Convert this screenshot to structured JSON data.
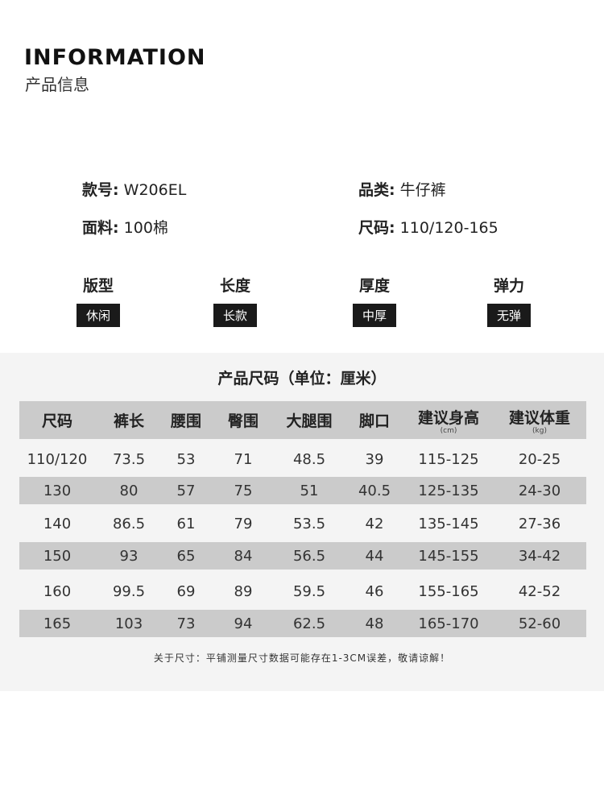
{
  "header": {
    "title_en": "INFORMATION",
    "title_cn": "产品信息"
  },
  "info": [
    {
      "label": "款号:",
      "value": "W206EL"
    },
    {
      "label": "品类:",
      "value": "牛仔裤"
    },
    {
      "label": "面料:",
      "value": "100棉"
    },
    {
      "label": "尺码:",
      "value": "110/120-165"
    }
  ],
  "attributes": [
    {
      "label": "版型",
      "value": "休闲"
    },
    {
      "label": "长度",
      "value": "长款"
    },
    {
      "label": "厚度",
      "value": "中厚"
    },
    {
      "label": "弹力",
      "value": "无弹"
    }
  ],
  "size_table": {
    "title": "产品尺码（单位：厘米）",
    "headers": [
      {
        "label": "尺码"
      },
      {
        "label": "裤长"
      },
      {
        "label": "腰围"
      },
      {
        "label": "臀围"
      },
      {
        "label": "大腿围"
      },
      {
        "label": "脚口"
      },
      {
        "label": "建议身高",
        "unit": "(cm)"
      },
      {
        "label": "建议体重",
        "unit": "(kg)"
      }
    ],
    "rows": [
      [
        "110/120",
        "73.5",
        "53",
        "71",
        "48.5",
        "39",
        "115-125",
        "20-25"
      ],
      [
        "130",
        "80",
        "57",
        "75",
        "51",
        "40.5",
        "125-135",
        "24-30"
      ],
      [
        "140",
        "86.5",
        "61",
        "79",
        "53.5",
        "42",
        "135-145",
        "27-36"
      ],
      [
        "150",
        "93",
        "65",
        "84",
        "56.5",
        "44",
        "145-155",
        "34-42"
      ],
      [
        "160",
        "99.5",
        "69",
        "89",
        "59.5",
        "46",
        "155-165",
        "42-52"
      ],
      [
        "165",
        "103",
        "73",
        "94",
        "62.5",
        "48",
        "165-170",
        "52-60"
      ]
    ],
    "note": "关于尺寸：平铺测量尺寸数据可能存在1-3CM误差，敬请谅解！"
  },
  "colors": {
    "header_row": "#cbcbcb",
    "panel": "#f4f4f4",
    "tag": "#1a1a1a"
  }
}
